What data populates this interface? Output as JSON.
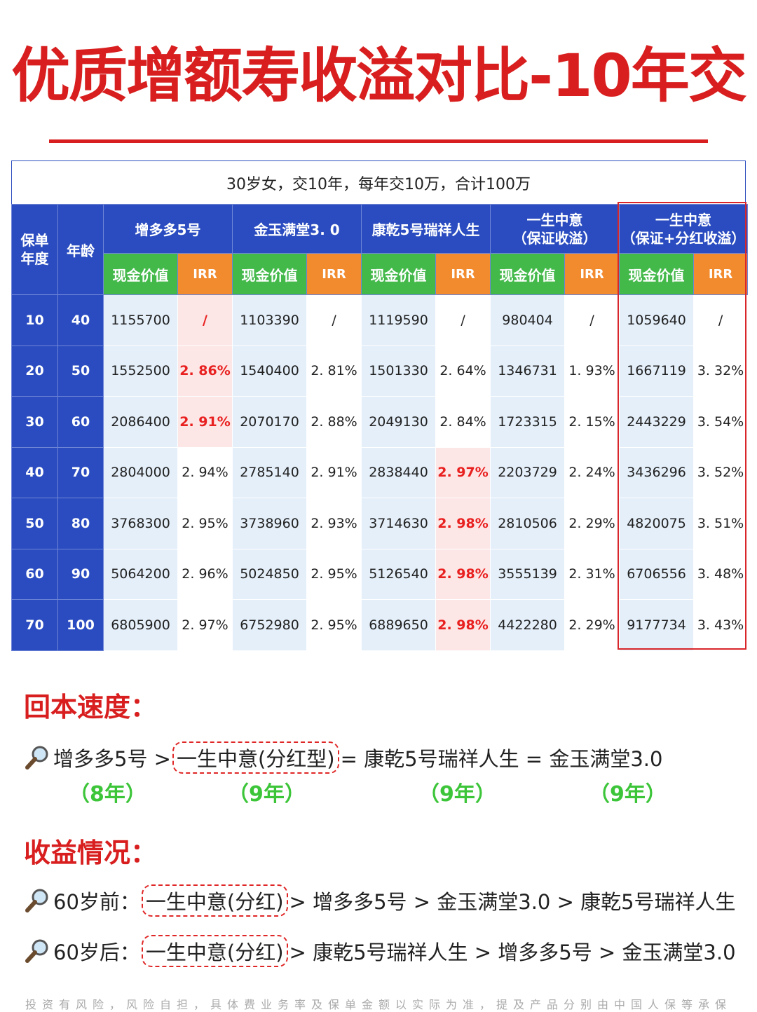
{
  "title": "优质增额寿收溢对比-10年交",
  "table": {
    "caption": "30岁女，交10年，每年交10万，合计100万",
    "col_policy_year": "保单\n年度",
    "col_age": "年龄",
    "products": [
      {
        "name": "增多多5号"
      },
      {
        "name": "金玉满堂3. 0"
      },
      {
        "name": "康乾5号瑞祥人生"
      },
      {
        "name": "一生中意\n（保证收溢）"
      },
      {
        "name": "一生中意\n（保证+分红收溢）"
      }
    ],
    "sub_cash_value": "现金价值",
    "sub_irr": "IRR",
    "rows": [
      {
        "year": "10",
        "age": "40",
        "cells": [
          "1155700",
          "/",
          "1103390",
          "/",
          "1119590",
          "/",
          "980404",
          "/",
          "1059640",
          "/"
        ]
      },
      {
        "year": "20",
        "age": "50",
        "cells": [
          "1552500",
          "2. 86%",
          "1540400",
          "2. 81%",
          "1501330",
          "2. 64%",
          "1346731",
          "1. 93%",
          "1667119",
          "3. 32%"
        ]
      },
      {
        "year": "30",
        "age": "60",
        "cells": [
          "2086400",
          "2. 91%",
          "2070170",
          "2. 88%",
          "2049130",
          "2. 84%",
          "1723315",
          "2. 15%",
          "2443229",
          "3. 54%"
        ]
      },
      {
        "year": "40",
        "age": "70",
        "cells": [
          "2804000",
          "2. 94%",
          "2785140",
          "2. 91%",
          "2838440",
          "2. 97%",
          "2203729",
          "2. 24%",
          "3436296",
          "3. 52%"
        ]
      },
      {
        "year": "50",
        "age": "80",
        "cells": [
          "3768300",
          "2. 95%",
          "3738960",
          "2. 93%",
          "3714630",
          "2. 98%",
          "2810506",
          "2. 29%",
          "4820075",
          "3. 51%"
        ]
      },
      {
        "year": "60",
        "age": "90",
        "cells": [
          "5064200",
          "2. 96%",
          "5024850",
          "2. 95%",
          "5126540",
          "2. 98%",
          "3555139",
          "2. 31%",
          "6706556",
          "3. 48%"
        ]
      },
      {
        "year": "70",
        "age": "100",
        "cells": [
          "6805900",
          "2. 97%",
          "6752980",
          "2. 95%",
          "6889650",
          "2. 98%",
          "4422280",
          "2. 29%",
          "9177734",
          "3. 43%"
        ]
      }
    ]
  },
  "payback": {
    "heading": "回本速度：",
    "p1": "增多多5号 >",
    "p2": "一生中意(分红型)",
    "p3": "= 康乾5号瑞祥人生 = 金玉满堂3.0",
    "years": [
      "（8年）",
      "（9年）",
      "（9年）",
      "（9年）"
    ]
  },
  "returns": {
    "heading": "收益情况：",
    "before_label": "60岁前：",
    "before_box": "一生中意(分红)",
    "before_rest": "> 增多多5号 > 金玉满堂3.0 > 康乾5号瑞祥人生",
    "after_label": "60岁后：",
    "after_box": "一生中意(分红)",
    "after_rest": "> 康乾5号瑞祥人生 > 增多多5号 > 金玉满堂3.0"
  },
  "disclaimer": "投资有风险，风险自担，具体费业务率及保单金额以实际为准，提及产品分别由中国人保等承保",
  "colors": {
    "accent_red": "#d81e1e",
    "header_blue": "#2a4cc0",
    "header_green": "#43b94a",
    "header_orange": "#f28a2e",
    "highlight_pink": "#fde6e6",
    "year_green": "#3dc53a"
  },
  "icons": [
    "magnifier-icon"
  ]
}
